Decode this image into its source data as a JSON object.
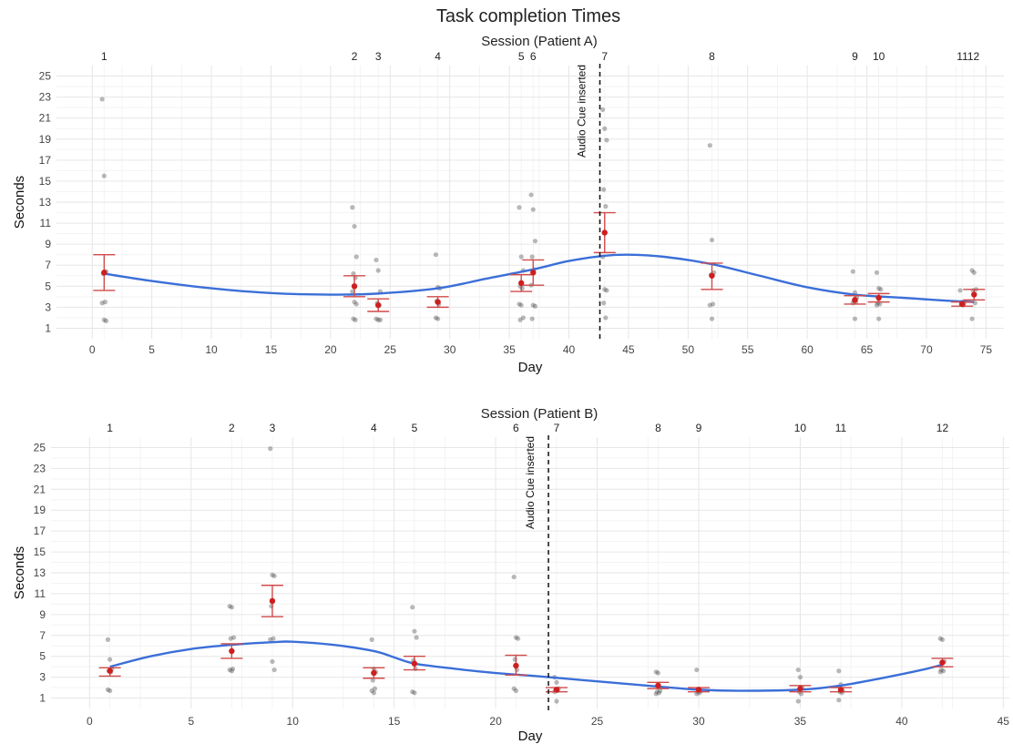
{
  "figure": {
    "title": "Task completion Times"
  },
  "chart_data": [
    {
      "type": "scatter",
      "panel": "A",
      "top_axis_title": "Session (Patient A)",
      "xlabel": "Day",
      "ylabel": "Seconds",
      "xlim": [
        -3,
        76.5
      ],
      "ylim": [
        0,
        26
      ],
      "x_ticks": [
        0,
        5,
        10,
        15,
        20,
        25,
        30,
        35,
        40,
        45,
        50,
        55,
        60,
        65,
        70,
        75
      ],
      "y_ticks": [
        1,
        3,
        5,
        7,
        9,
        11,
        13,
        15,
        17,
        19,
        21,
        23,
        25
      ],
      "grid": true,
      "sessions": [
        {
          "label": "1",
          "day": 1
        },
        {
          "label": "2",
          "day": 22
        },
        {
          "label": "3",
          "day": 24
        },
        {
          "label": "4",
          "day": 29
        },
        {
          "label": "5",
          "day": 36
        },
        {
          "label": "6",
          "day": 37
        },
        {
          "label": "7",
          "day": 43
        },
        {
          "label": "8",
          "day": 52
        },
        {
          "label": "9",
          "day": 64
        },
        {
          "label": "10",
          "day": 66
        },
        {
          "label": "11",
          "day": 73
        },
        {
          "label": "12",
          "day": 74
        }
      ],
      "session_tick_text": [
        {
          "text": "1",
          "day": 1
        },
        {
          "text": "2",
          "day": 22
        },
        {
          "text": "3",
          "day": 24
        },
        {
          "text": "4",
          "day": 29
        },
        {
          "text": "5",
          "day": 36
        },
        {
          "text": "6",
          "day": 37
        },
        {
          "text": "7",
          "day": 43
        },
        {
          "text": "8",
          "day": 52
        },
        {
          "text": "9",
          "day": 64
        },
        {
          "text": "10",
          "day": 66
        },
        {
          "text": "1112",
          "day": 73.5
        }
      ],
      "annotation": {
        "text": "Audio Cue inserted",
        "day": 42.6
      },
      "observations": [
        {
          "day": 1,
          "values": [
            22.8,
            15.5,
            6.4,
            6.2,
            3.5,
            3.4,
            1.8,
            1.7
          ]
        },
        {
          "day": 22,
          "values": [
            12.5,
            10.7,
            7.8,
            6.2,
            5.8,
            4.5,
            3.5,
            3.3,
            1.9,
            1.8
          ]
        },
        {
          "day": 24,
          "values": [
            7.5,
            6.5,
            4.5,
            3.4,
            3.2,
            1.9,
            1.8,
            1.8
          ]
        },
        {
          "day": 29,
          "values": [
            8.0,
            4.9,
            4.8,
            3.6,
            3.3,
            2.0,
            1.9
          ]
        },
        {
          "day": 36,
          "values": [
            12.5,
            7.8,
            6.5,
            5.0,
            4.8,
            3.3,
            3.2,
            2.0,
            1.8
          ]
        },
        {
          "day": 37,
          "values": [
            13.7,
            12.3,
            9.3,
            7.8,
            6.6,
            5.1,
            3.2,
            3.1,
            1.9
          ]
        },
        {
          "day": 43,
          "values": [
            21.8,
            20.0,
            18.9,
            14.2,
            12.6,
            7.8,
            4.7,
            4.6,
            3.4,
            2.0
          ]
        },
        {
          "day": 52,
          "values": [
            18.4,
            9.4,
            6.3,
            6.1,
            3.3,
            3.2,
            1.9
          ]
        },
        {
          "day": 64,
          "values": [
            6.4,
            4.4,
            3.9,
            3.6,
            3.5,
            3.4,
            1.9
          ]
        },
        {
          "day": 66,
          "values": [
            6.3,
            4.8,
            4.7,
            3.4,
            3.3,
            3.2,
            1.9
          ]
        },
        {
          "day": 73,
          "values": [
            4.6,
            3.5,
            3.4,
            3.3,
            3.2
          ]
        },
        {
          "day": 74,
          "values": [
            6.5,
            6.3,
            4.7,
            4.6,
            3.4,
            1.9
          ]
        }
      ],
      "means": [
        {
          "day": 1,
          "mean": 6.3,
          "lower": 4.6,
          "upper": 8.0
        },
        {
          "day": 22,
          "mean": 5.0,
          "lower": 4.0,
          "upper": 6.0
        },
        {
          "day": 24,
          "mean": 3.2,
          "lower": 2.6,
          "upper": 3.8
        },
        {
          "day": 29,
          "mean": 3.5,
          "lower": 3.0,
          "upper": 4.0
        },
        {
          "day": 36,
          "mean": 5.3,
          "lower": 4.5,
          "upper": 6.1
        },
        {
          "day": 37,
          "mean": 6.3,
          "lower": 5.1,
          "upper": 7.5
        },
        {
          "day": 43,
          "mean": 10.1,
          "lower": 8.2,
          "upper": 12.0
        },
        {
          "day": 52,
          "mean": 6.0,
          "lower": 4.7,
          "upper": 7.2
        },
        {
          "day": 64,
          "mean": 3.7,
          "lower": 3.3,
          "upper": 4.1
        },
        {
          "day": 66,
          "mean": 3.9,
          "lower": 3.5,
          "upper": 4.3
        },
        {
          "day": 73,
          "mean": 3.3,
          "lower": 3.1,
          "upper": 3.5
        },
        {
          "day": 74,
          "mean": 4.2,
          "lower": 3.7,
          "upper": 4.7
        }
      ],
      "smooth": [
        [
          1,
          6.2
        ],
        [
          5,
          5.5
        ],
        [
          10,
          4.8
        ],
        [
          15,
          4.35
        ],
        [
          20,
          4.2
        ],
        [
          24,
          4.3
        ],
        [
          29,
          4.8
        ],
        [
          33,
          5.7
        ],
        [
          37,
          6.6
        ],
        [
          40,
          7.4
        ],
        [
          43,
          7.9
        ],
        [
          45,
          8.0
        ],
        [
          48,
          7.8
        ],
        [
          52,
          7.1
        ],
        [
          56,
          6.0
        ],
        [
          60,
          4.9
        ],
        [
          64,
          4.2
        ],
        [
          68,
          3.9
        ],
        [
          72,
          3.6
        ],
        [
          74,
          3.5
        ]
      ]
    },
    {
      "type": "scatter",
      "panel": "B",
      "top_axis_title": "Session (Patient B)",
      "xlabel": "Day",
      "ylabel": "Seconds",
      "xlim": [
        -1.9,
        45.3
      ],
      "ylim": [
        0,
        26
      ],
      "x_ticks": [
        0,
        5,
        10,
        15,
        20,
        25,
        30,
        35,
        40,
        45
      ],
      "y_ticks": [
        1,
        3,
        5,
        7,
        9,
        11,
        13,
        15,
        17,
        19,
        21,
        23,
        25
      ],
      "grid": true,
      "sessions": [
        {
          "label": "1",
          "day": 1
        },
        {
          "label": "2",
          "day": 7
        },
        {
          "label": "3",
          "day": 9
        },
        {
          "label": "4",
          "day": 14
        },
        {
          "label": "5",
          "day": 16
        },
        {
          "label": "6",
          "day": 21
        },
        {
          "label": "7",
          "day": 23
        },
        {
          "label": "8",
          "day": 28
        },
        {
          "label": "9",
          "day": 30
        },
        {
          "label": "10",
          "day": 35
        },
        {
          "label": "11",
          "day": 37
        },
        {
          "label": "12",
          "day": 42
        }
      ],
      "session_tick_text": [
        {
          "text": "1",
          "day": 1
        },
        {
          "text": "2",
          "day": 7
        },
        {
          "text": "3",
          "day": 9
        },
        {
          "text": "4",
          "day": 14
        },
        {
          "text": "5",
          "day": 16
        },
        {
          "text": "6",
          "day": 21
        },
        {
          "text": "7",
          "day": 23
        },
        {
          "text": "8",
          "day": 28
        },
        {
          "text": "9",
          "day": 30
        },
        {
          "text": "10",
          "day": 35
        },
        {
          "text": "11",
          "day": 37
        },
        {
          "text": "12",
          "day": 42
        }
      ],
      "annotation": {
        "text": "Audio Cue inserted",
        "day": 22.6
      },
      "observations": [
        {
          "day": 1,
          "values": [
            6.6,
            4.7,
            3.8,
            3.6,
            3.5,
            1.8,
            1.7
          ]
        },
        {
          "day": 7,
          "values": [
            9.8,
            9.7,
            6.8,
            6.7,
            3.8,
            3.7,
            3.6
          ]
        },
        {
          "day": 9,
          "values": [
            24.9,
            12.8,
            12.7,
            9.8,
            6.7,
            6.6,
            4.5,
            3.7
          ]
        },
        {
          "day": 14,
          "values": [
            6.6,
            3.8,
            3.5,
            2.7,
            1.9,
            1.7,
            1.5
          ]
        },
        {
          "day": 16,
          "values": [
            9.7,
            7.4,
            6.8,
            4.6,
            3.8,
            1.6,
            1.5
          ]
        },
        {
          "day": 21,
          "values": [
            12.6,
            6.8,
            6.7,
            4.7,
            3.7,
            1.9,
            1.7
          ]
        },
        {
          "day": 23,
          "values": [
            3.0,
            2.5,
            1.9,
            1.8,
            1.7,
            1.6,
            0.7
          ]
        },
        {
          "day": 28,
          "values": [
            3.5,
            3.4,
            1.7,
            1.6,
            1.5,
            1.4
          ]
        },
        {
          "day": 30,
          "values": [
            3.7,
            1.8,
            1.7,
            1.6,
            1.5,
            1.4
          ]
        },
        {
          "day": 35,
          "values": [
            3.7,
            3.0,
            2.0,
            1.6,
            1.4,
            0.7
          ]
        },
        {
          "day": 37,
          "values": [
            3.6,
            2.3,
            1.7,
            1.6,
            1.5,
            0.8
          ]
        },
        {
          "day": 42,
          "values": [
            6.7,
            6.6,
            4.5,
            3.7,
            3.6,
            3.5
          ]
        }
      ],
      "means": [
        {
          "day": 1,
          "mean": 3.6,
          "lower": 3.1,
          "upper": 3.9
        },
        {
          "day": 7,
          "mean": 5.5,
          "lower": 4.8,
          "upper": 6.2
        },
        {
          "day": 9,
          "mean": 10.3,
          "lower": 8.8,
          "upper": 11.8
        },
        {
          "day": 14,
          "mean": 3.4,
          "lower": 2.9,
          "upper": 3.9
        },
        {
          "day": 16,
          "mean": 4.3,
          "lower": 3.7,
          "upper": 5.0
        },
        {
          "day": 21,
          "mean": 4.1,
          "lower": 3.2,
          "upper": 5.1
        },
        {
          "day": 23,
          "mean": 1.8,
          "lower": 1.6,
          "upper": 2.0
        },
        {
          "day": 28,
          "mean": 2.2,
          "lower": 1.9,
          "upper": 2.5
        },
        {
          "day": 30,
          "mean": 1.8,
          "lower": 1.6,
          "upper": 2.0
        },
        {
          "day": 35,
          "mean": 1.9,
          "lower": 1.6,
          "upper": 2.2
        },
        {
          "day": 37,
          "mean": 1.8,
          "lower": 1.6,
          "upper": 2.0
        },
        {
          "day": 42,
          "mean": 4.4,
          "lower": 4.0,
          "upper": 4.8
        }
      ],
      "smooth": [
        [
          1,
          4.0
        ],
        [
          3,
          5.0
        ],
        [
          5,
          5.7
        ],
        [
          7,
          6.1
        ],
        [
          9,
          6.35
        ],
        [
          10,
          6.4
        ],
        [
          12,
          6.1
        ],
        [
          14,
          5.5
        ],
        [
          15,
          4.9
        ],
        [
          16,
          4.3
        ],
        [
          18,
          3.8
        ],
        [
          20,
          3.4
        ],
        [
          22,
          3.1
        ],
        [
          25,
          2.6
        ],
        [
          28,
          2.1
        ],
        [
          30,
          1.8
        ],
        [
          32,
          1.7
        ],
        [
          35,
          1.8
        ],
        [
          37,
          2.2
        ],
        [
          39,
          2.9
        ],
        [
          41,
          3.7
        ],
        [
          42,
          4.2
        ]
      ]
    }
  ]
}
